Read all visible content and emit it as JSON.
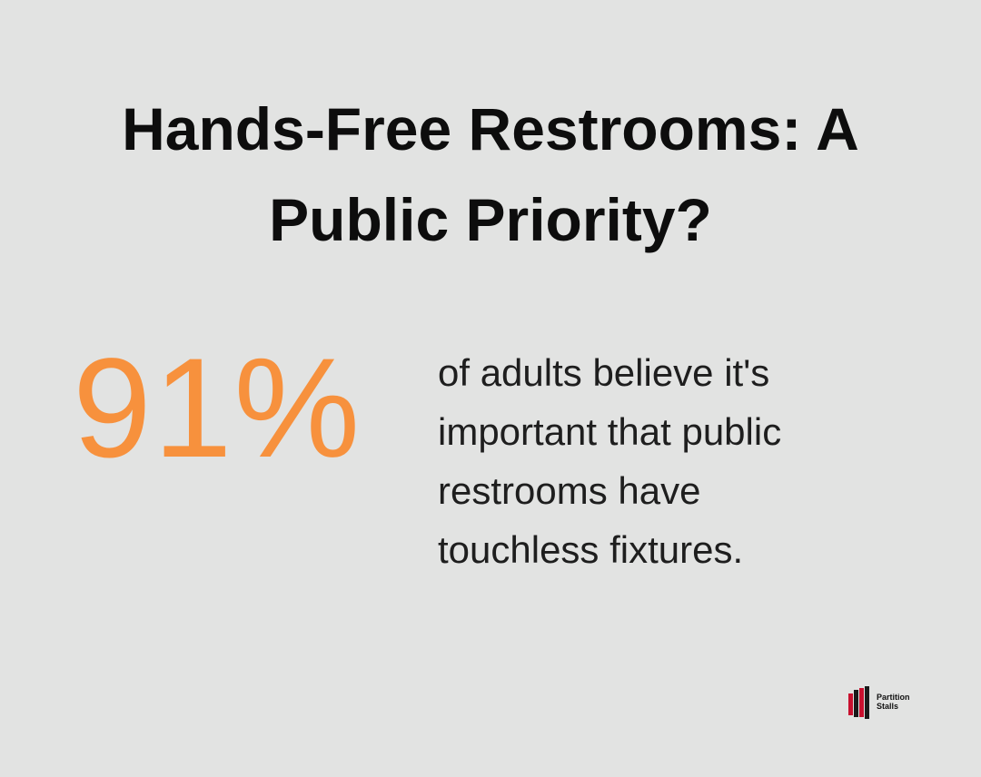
{
  "title": "Hands-Free Restrooms: A Public Priority?",
  "stat": "91%",
  "description": "of adults believe it's important that public restrooms have touchless fixtures.",
  "logo": {
    "lines": [
      "Partition",
      "Stalls"
    ]
  }
}
